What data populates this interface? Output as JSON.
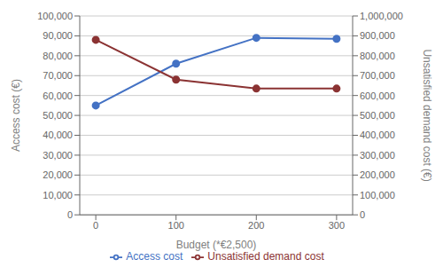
{
  "chart_data": {
    "type": "line",
    "x": [
      0,
      100,
      200,
      300
    ],
    "xlim": [
      -20,
      320
    ],
    "xticks": [
      0,
      100,
      200,
      300
    ],
    "xlabel": "Budget (*€2,500)",
    "ylabel": "Access cost (€)",
    "y2label": "Unsatisfied demand cost (€)",
    "ylim": [
      0,
      100000
    ],
    "yticks": [
      0,
      {
        "value": 10000,
        "label": "10,000"
      },
      {
        "value": 20000,
        "label": "20,000"
      },
      {
        "value": 30000,
        "label": "30,000"
      },
      {
        "value": 40000,
        "label": "40,000"
      },
      {
        "value": 50000,
        "label": "50,000"
      },
      {
        "value": 60000,
        "label": "60,000"
      },
      {
        "value": 70000,
        "label": "70,000"
      },
      {
        "value": 80000,
        "label": "80,000"
      },
      {
        "value": 90000,
        "label": "90,000"
      },
      {
        "value": 100000,
        "label": "100,000"
      }
    ],
    "y2lim": [
      0,
      1000000
    ],
    "y2ticks": [
      0,
      {
        "value": 100000,
        "label": "100,000"
      },
      {
        "value": 200000,
        "label": "200,000"
      },
      {
        "value": 300000,
        "label": "300,000"
      },
      {
        "value": 400000,
        "label": "400,000"
      },
      {
        "value": 500000,
        "label": "500,000"
      },
      {
        "value": 600000,
        "label": "600,000"
      },
      {
        "value": 700000,
        "label": "700,000"
      },
      {
        "value": 800000,
        "label": "800,000"
      },
      {
        "value": 900000,
        "label": "900,000"
      },
      {
        "value": 1000000,
        "label": "1,000,000"
      }
    ],
    "grid": true,
    "legend": "bottom",
    "series": [
      {
        "name": "Access cost",
        "color": "#4472C4",
        "marker": "circle",
        "values": [
          55000,
          76000,
          89000,
          88500
        ]
      },
      {
        "name": "Unsatisfied demand cost",
        "color": "#8B3333",
        "marker": "circle",
        "axis": "y2",
        "values": [
          880000,
          680000,
          635000,
          635000
        ]
      }
    ]
  }
}
